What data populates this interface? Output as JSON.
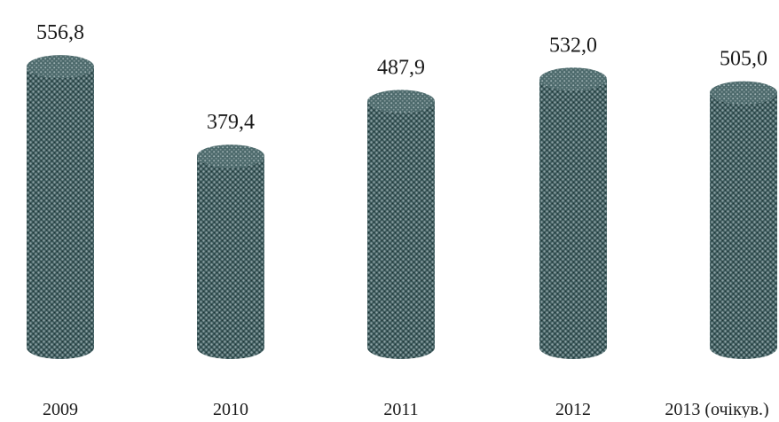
{
  "chart_data": {
    "type": "bar",
    "bar_shape": "cylinder",
    "bar_fill": "dark teal-gray dotted texture",
    "categories": [
      "2009",
      "2010",
      "2011",
      "2012",
      "2013 (очікув.)"
    ],
    "values": [
      556.8,
      379.4,
      487.9,
      532.0,
      505.0
    ],
    "value_labels": [
      "556,8",
      "379,4",
      "487,9",
      "532,0",
      "505,0"
    ],
    "title": "",
    "xlabel": "",
    "ylabel": "",
    "legend": "none",
    "grid": false,
    "axes_visible": false
  },
  "colors": {
    "background": "#ffffff",
    "bar_base": "#3d5a5c",
    "bar_dot_light": "#8fa3a6",
    "bar_dot_dark": "#1f3436",
    "text": "#1a1a1a"
  }
}
